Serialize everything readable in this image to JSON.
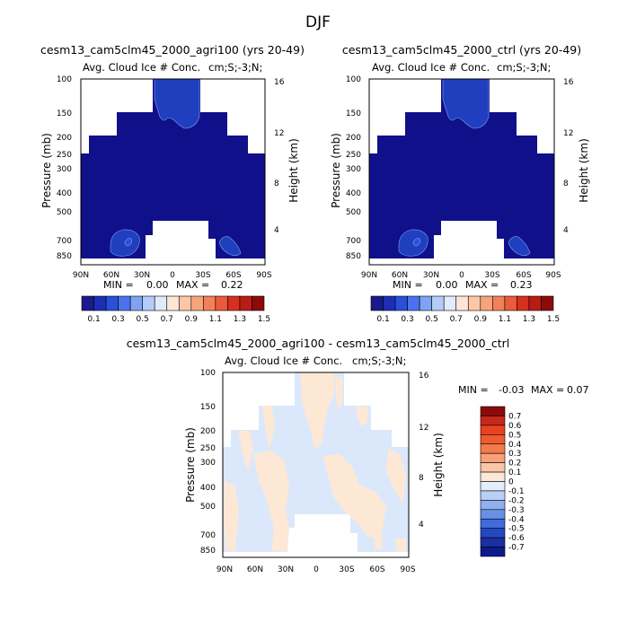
{
  "page": {
    "season": "DJF"
  },
  "chart_data": [
    {
      "type": "heatmap",
      "title": "cesm13_cam5clm45_2000_agri100 (yrs 20-49)",
      "subtitle_left": "Avg. Cloud Ice # Conc.",
      "subtitle_right": "cm;S;-3;N;",
      "xlabel": "",
      "ylabel": "Pressure (mb)",
      "ylabel_right": "Height (km)",
      "x_ticks": [
        "90N",
        "60N",
        "30N",
        "0",
        "30S",
        "60S",
        "90S"
      ],
      "y_ticks": [
        "100",
        "150",
        "200",
        "250",
        "300",
        "400",
        "500",
        "700",
        "850"
      ],
      "y_right_ticks": [
        "16",
        "12",
        "8",
        "4"
      ],
      "stats": {
        "min_label": "MIN =",
        "min": "0.00",
        "max_label": "MAX =",
        "max": "0.22"
      },
      "dominant_level": 0.1,
      "local_maxima": [
        0.3,
        0.3,
        0.3
      ]
    },
    {
      "type": "heatmap",
      "title": "cesm13_cam5clm45_2000_ctrl (yrs 20-49)",
      "subtitle_left": "Avg. Cloud Ice # Conc.",
      "subtitle_right": "cm;S;-3;N;",
      "xlabel": "",
      "ylabel": "Pressure (mb)",
      "ylabel_right": "Height (km)",
      "x_ticks": [
        "90N",
        "60N",
        "30N",
        "0",
        "30S",
        "60S",
        "90S"
      ],
      "y_ticks": [
        "100",
        "150",
        "200",
        "250",
        "300",
        "400",
        "500",
        "700",
        "850"
      ],
      "y_right_ticks": [
        "16",
        "12",
        "8",
        "4"
      ],
      "stats": {
        "min_label": "MIN =",
        "min": "0.00",
        "max_label": "MAX =",
        "max": "0.23"
      },
      "dominant_level": 0.1,
      "local_maxima": [
        0.3,
        0.3,
        0.3
      ]
    },
    {
      "type": "heatmap",
      "title": "cesm13_cam5clm45_2000_agri100 - cesm13_cam5clm45_2000_ctrl",
      "subtitle_left": "Avg. Cloud Ice # Conc.",
      "subtitle_right": "cm;S;-3;N;",
      "xlabel": "",
      "ylabel": "Pressure (mb)",
      "ylabel_right": "Height (km)",
      "x_ticks": [
        "90N",
        "60N",
        "30N",
        "0",
        "30S",
        "60S",
        "90S"
      ],
      "y_ticks": [
        "100",
        "150",
        "200",
        "250",
        "300",
        "400",
        "500",
        "700",
        "850"
      ],
      "y_right_ticks": [
        "16",
        "12",
        "8",
        "4"
      ],
      "stats": {
        "min_label": "MIN =",
        "min": "-0.03",
        "max_label": "MAX =",
        "max": "0.07"
      },
      "levels_present": [
        -0.1,
        0.1
      ]
    }
  ],
  "colorbar_top": {
    "labels": [
      "0.1",
      "0.3",
      "0.5",
      "0.7",
      "0.9",
      "1.1",
      "1.3",
      "1.5"
    ],
    "colors": [
      "#1a1a8c",
      "#1c2fb4",
      "#2a4fd8",
      "#4a72ee",
      "#7fa2f3",
      "#b4ccf7",
      "#e0ebfb",
      "#fde6d6",
      "#fbc7a6",
      "#f7a47d",
      "#f2815a",
      "#ea5a3c",
      "#d7301f",
      "#b81c14",
      "#8c0a0a"
    ]
  },
  "colorbar_diff": {
    "labels": [
      "0.7",
      "0.6",
      "0.5",
      "0.4",
      "0.3",
      "0.2",
      "0.1",
      "0",
      "-0.1",
      "-0.2",
      "-0.3",
      "-0.4",
      "-0.5",
      "-0.6",
      "-0.7"
    ],
    "colors": [
      "#8b0a0a",
      "#c8281c",
      "#e8421f",
      "#f05a2e",
      "#f47a4c",
      "#f8a07a",
      "#fbc6a8",
      "#fde7d8",
      "#e4edfb",
      "#b9cff5",
      "#8fb0ee",
      "#6790e6",
      "#3f6bdc",
      "#2447c4",
      "#1a2fa0",
      "#0d1a8a"
    ]
  },
  "colors": {
    "deep_blue": "#10108a",
    "mid_blue": "#1f3fbe",
    "light_blue": "#dbe8fb",
    "light_peach": "#fde8d6"
  }
}
